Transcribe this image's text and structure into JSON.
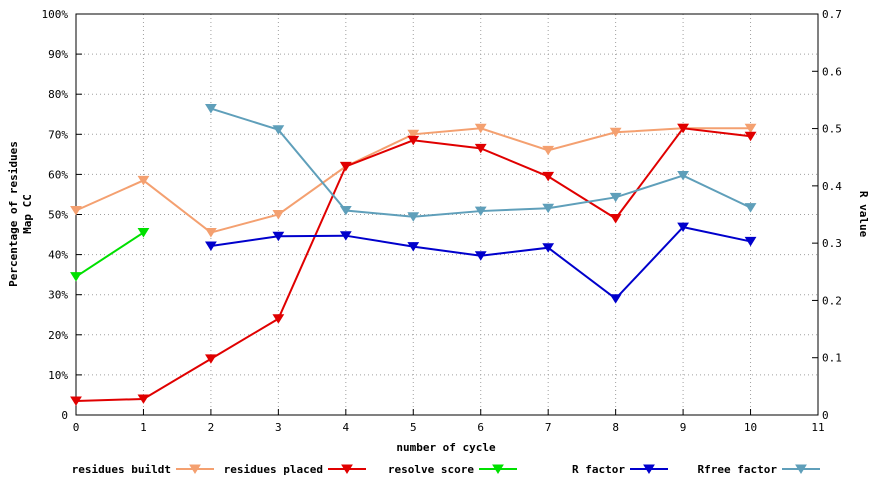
{
  "chart_data": {
    "type": "line",
    "xlabel": "number of cycle",
    "ylabel_left": [
      "Percentage of residues",
      "Map CC"
    ],
    "ylabel_right": "R value",
    "x_ticks": [
      "0",
      "1",
      "2",
      "3",
      "4",
      "5",
      "6",
      "7",
      "8",
      "9",
      "10",
      "11"
    ],
    "xlim": [
      0,
      11
    ],
    "y_left_ticks": [
      "0",
      "10%",
      "20%",
      "30%",
      "40%",
      "50%",
      "60%",
      "70%",
      "80%",
      "90%",
      "100%"
    ],
    "y_left_lim": [
      0,
      100
    ],
    "y_right_ticks": [
      "0",
      "0.1",
      "0.2",
      "0.3",
      "0.4",
      "0.5",
      "0.6",
      "0.7"
    ],
    "y_right_lim": [
      0,
      0.7
    ],
    "grid": true,
    "legend_position": "bottom",
    "series": [
      {
        "name": "residues buildt",
        "axis": "left",
        "color": "#f4a070",
        "x": [
          0,
          1,
          2,
          3,
          4,
          5,
          6,
          7,
          8,
          9,
          10
        ],
        "values": [
          51,
          58.5,
          45.5,
          50,
          62,
          70,
          71.5,
          66,
          70.5,
          71.5,
          71.5
        ]
      },
      {
        "name": "residues placed",
        "axis": "left",
        "color": "#e00000",
        "x": [
          0,
          1,
          2,
          3,
          4,
          5,
          6,
          7,
          8,
          9,
          10
        ],
        "values": [
          3.5,
          4,
          14,
          24,
          62,
          68.5,
          66.5,
          59.5,
          49,
          71.5,
          69.5
        ]
      },
      {
        "name": "resolve score",
        "axis": "left",
        "color": "#00e000",
        "x": [
          0,
          1
        ],
        "values": [
          34.5,
          45.5
        ]
      },
      {
        "name": "R factor",
        "axis": "right",
        "color": "#0000cc",
        "x": [
          2,
          3,
          4,
          5,
          6,
          7,
          8,
          9,
          10
        ],
        "values": [
          0.295,
          0.312,
          0.313,
          0.294,
          0.278,
          0.292,
          0.203,
          0.328,
          0.303
        ]
      },
      {
        "name": "Rfree factor",
        "axis": "right",
        "color": "#5f9fba",
        "x": [
          2,
          3,
          4,
          5,
          6,
          7,
          8,
          9,
          10
        ],
        "values": [
          0.535,
          0.498,
          0.357,
          0.346,
          0.356,
          0.361,
          0.38,
          0.418,
          0.362
        ]
      }
    ]
  }
}
